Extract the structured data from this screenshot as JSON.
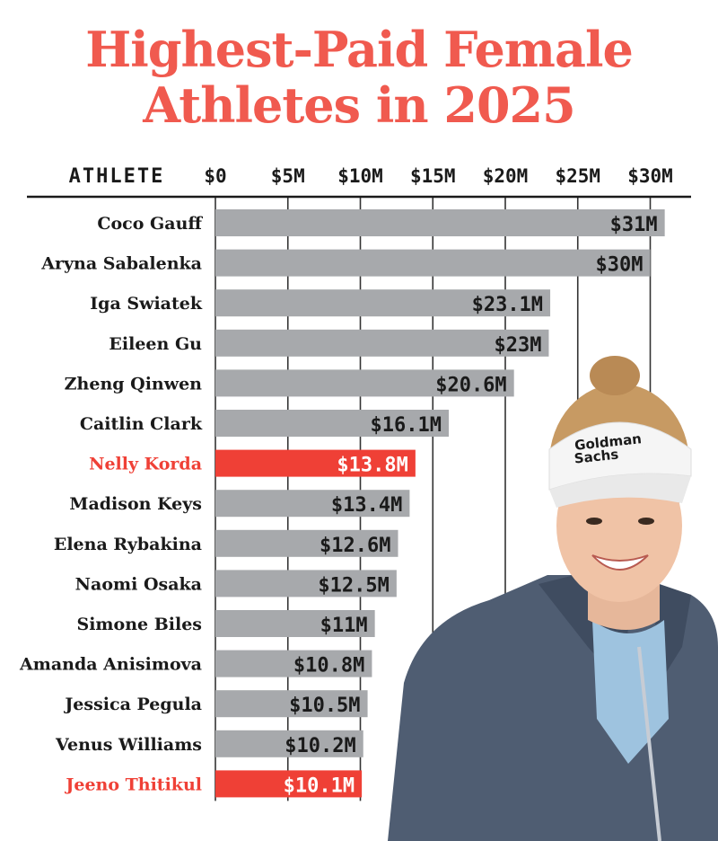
{
  "title_lines": [
    "Highest-Paid Female",
    "Athletes in 2025"
  ],
  "colors": {
    "title": "#f05a4f",
    "highlight": "#ef4036",
    "bar": "#a7a9ac",
    "text": "#1a1a1a",
    "gridline": "#333333"
  },
  "photo": {
    "description_icon": "golfer-photo",
    "visor_text": [
      "Goldman",
      "Sachs"
    ]
  },
  "chart_data": {
    "type": "bar",
    "orientation": "horizontal",
    "category_header": "ATHLETE",
    "xlim": [
      0,
      32
    ],
    "ticks": [
      0,
      5,
      10,
      15,
      20,
      25,
      30
    ],
    "tick_labels": [
      "$0",
      "$5M",
      "$10M",
      "$15M",
      "$20M",
      "$25M",
      "$30M"
    ],
    "categories": [
      "Coco Gauff",
      "Aryna Sabalenka",
      "Iga Swiatek",
      "Eileen Gu",
      "Zheng Qinwen",
      "Caitlin Clark",
      "Nelly Korda",
      "Madison Keys",
      "Elena Rybakina",
      "Naomi Osaka",
      "Simone Biles",
      "Amanda Anisimova",
      "Jessica Pegula",
      "Venus Williams",
      "Jeeno Thitikul"
    ],
    "values": [
      31,
      30,
      23.1,
      23,
      20.6,
      16.1,
      13.8,
      13.4,
      12.6,
      12.5,
      11,
      10.8,
      10.5,
      10.2,
      10.1
    ],
    "value_labels": [
      "$31M",
      "$30M",
      "$23.1M",
      "$23M",
      "$20.6M",
      "$16.1M",
      "$13.8M",
      "$13.4M",
      "$12.6M",
      "$12.5M",
      "$11M",
      "$10.8M",
      "$10.5M",
      "$10.2M",
      "$10.1M"
    ],
    "highlighted": [
      "Nelly Korda",
      "Jeeno Thitikul"
    ],
    "grid": true
  }
}
